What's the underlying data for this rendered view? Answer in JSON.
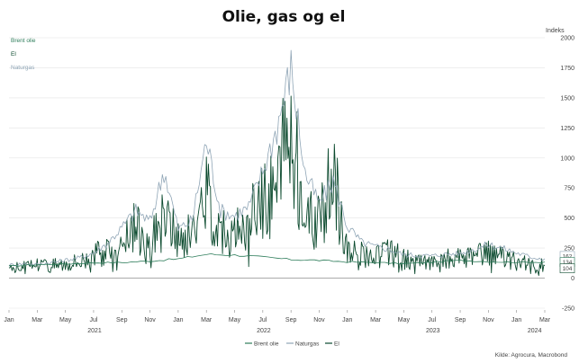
{
  "chart_data": {
    "type": "line",
    "title": "Olie, gas og el",
    "ylabel": "Indeks",
    "source": "Kilde: Agrocura, Macrobond",
    "ylim": [
      -250,
      2000
    ],
    "y_ticks": [
      "-250",
      "0",
      "250",
      "500",
      "750",
      "1000",
      "1250",
      "1500",
      "1750",
      "2000"
    ],
    "x_month_ticks": [
      "Jan",
      "Mar",
      "May",
      "Jul",
      "Sep",
      "Nov",
      "Jan",
      "Mar",
      "May",
      "Jul",
      "Sep",
      "Nov",
      "Jan",
      "Mar",
      "May",
      "Jul",
      "Sep",
      "Nov",
      "Jan",
      "Mar"
    ],
    "x_year_labels": [
      "2021",
      "2022",
      "2023",
      "2024"
    ],
    "x_range": [
      "2021-01",
      "2024-03"
    ],
    "grid": true,
    "legend_position": "bottom",
    "end_value_labels": [
      "162",
      "134",
      "104"
    ],
    "series": [
      {
        "name": "Brent olie",
        "color": "#2e7d5b",
        "x": [
          "2021-01",
          "2021-03",
          "2021-05",
          "2021-07",
          "2021-09",
          "2021-11",
          "2022-01",
          "2022-03",
          "2022-05",
          "2022-07",
          "2022-09",
          "2022-11",
          "2023-01",
          "2023-03",
          "2023-05",
          "2023-07",
          "2023-09",
          "2023-11",
          "2024-01",
          "2024-03"
        ],
        "values": [
          100,
          112,
          118,
          128,
          130,
          142,
          160,
          198,
          192,
          175,
          155,
          148,
          135,
          130,
          120,
          132,
          148,
          138,
          132,
          134
        ]
      },
      {
        "name": "Naturgas",
        "color": "#8fa5b6",
        "x": [
          "2021-01",
          "2021-02",
          "2021-03",
          "2021-04",
          "2021-05",
          "2021-06",
          "2021-07",
          "2021-08",
          "2021-09",
          "2021-10",
          "2021-11",
          "2021-12",
          "2022-01",
          "2022-02",
          "2022-03",
          "2022-04",
          "2022-05",
          "2022-06",
          "2022-07",
          "2022-08",
          "2022-09",
          "2022-10",
          "2022-11",
          "2022-12",
          "2023-01",
          "2023-02",
          "2023-03",
          "2023-04",
          "2023-05",
          "2023-06",
          "2023-07",
          "2023-08",
          "2023-09",
          "2023-10",
          "2023-11",
          "2023-12",
          "2024-01",
          "2024-02",
          "2024-03"
        ],
        "values": [
          110,
          120,
          115,
          130,
          150,
          170,
          210,
          290,
          420,
          560,
          470,
          900,
          410,
          480,
          1150,
          560,
          520,
          590,
          890,
          1250,
          1750,
          870,
          620,
          810,
          430,
          300,
          260,
          240,
          195,
          190,
          185,
          200,
          205,
          240,
          280,
          250,
          210,
          175,
          162
        ]
      },
      {
        "name": "El",
        "color": "#0b4a2e",
        "x": [
          "2021-01",
          "2021-02",
          "2021-03",
          "2021-04",
          "2021-05",
          "2021-06",
          "2021-07",
          "2021-08",
          "2021-09",
          "2021-10",
          "2021-11",
          "2021-12",
          "2022-01",
          "2022-02",
          "2022-03",
          "2022-04",
          "2022-05",
          "2022-06",
          "2022-07",
          "2022-08",
          "2022-09",
          "2022-10",
          "2022-11",
          "2022-12",
          "2023-01",
          "2023-02",
          "2023-03",
          "2023-04",
          "2023-05",
          "2023-06",
          "2023-07",
          "2023-08",
          "2023-09",
          "2023-10",
          "2023-11",
          "2023-12",
          "2024-01",
          "2024-02",
          "2024-03"
        ],
        "values": [
          100,
          95,
          120,
          110,
          130,
          150,
          190,
          230,
          300,
          420,
          280,
          520,
          300,
          360,
          700,
          420,
          350,
          480,
          620,
          820,
          1300,
          520,
          450,
          880,
          240,
          200,
          180,
          220,
          160,
          150,
          120,
          170,
          160,
          180,
          200,
          170,
          140,
          115,
          104
        ]
      }
    ]
  }
}
